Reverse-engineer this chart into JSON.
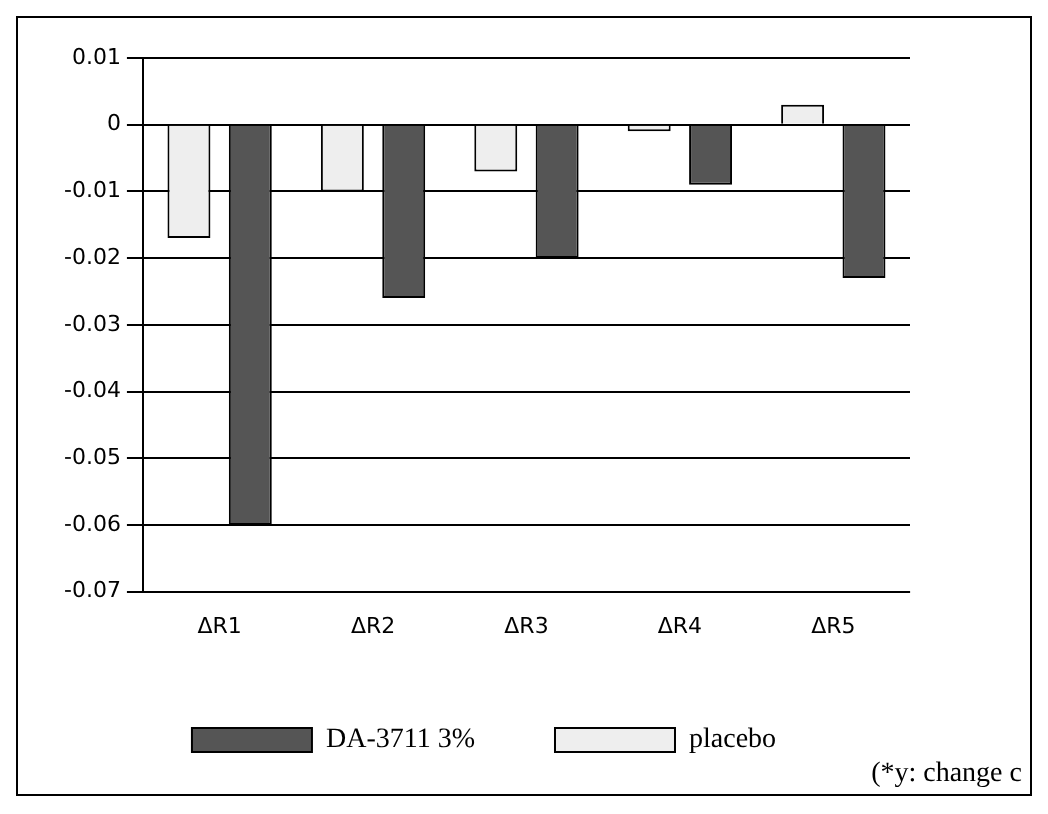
{
  "chart_data": {
    "type": "bar",
    "categories": [
      "ΔR1",
      "ΔR2",
      "ΔR3",
      "ΔR4",
      "ΔR5"
    ],
    "series": [
      {
        "name": "placebo",
        "color": "#eeeeee",
        "values": [
          -0.017,
          -0.01,
          -0.007,
          -0.001,
          0.003
        ]
      },
      {
        "name": "DA-3711 3%",
        "color": "#555555",
        "values": [
          -0.06,
          -0.026,
          -0.02,
          -0.009,
          -0.023
        ]
      }
    ],
    "ylim": [
      -0.07,
      0.01
    ],
    "yticks": [
      0.01,
      0,
      -0.01,
      -0.02,
      -0.03,
      -0.04,
      -0.05,
      -0.06,
      -0.07
    ],
    "grid": "y",
    "legend": "bottom",
    "annotations": [
      "(*y: change c"
    ]
  }
}
